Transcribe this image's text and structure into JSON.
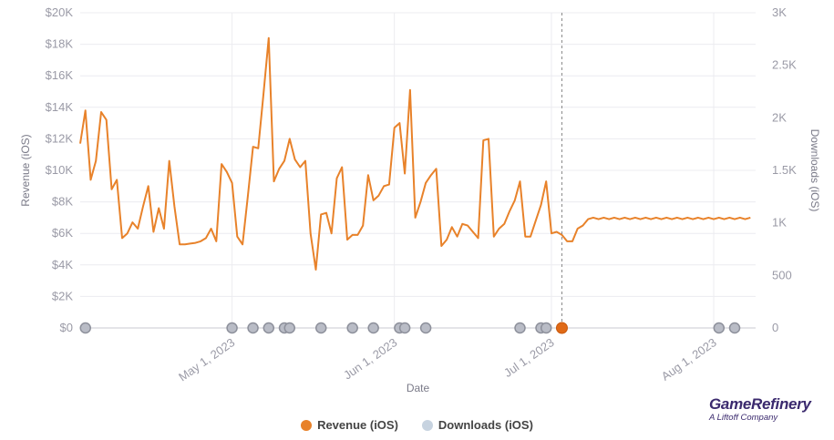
{
  "chart_data": {
    "type": "line",
    "xlabel": "Date",
    "y_left_label": "Revenue (iOS)",
    "y_right_label": "Downloads (iOS)",
    "x_range": [
      "2023-04-02",
      "2023-08-09"
    ],
    "y_left_range": [
      0,
      20000
    ],
    "y_right_range": [
      0,
      3000
    ],
    "y_left_ticks": [
      "$0",
      "$2K",
      "$4K",
      "$6K",
      "$8K",
      "$10K",
      "$12K",
      "$14K",
      "$16K",
      "$18K",
      "$20K"
    ],
    "y_right_ticks": [
      "0",
      "500",
      "1K",
      "1.5K",
      "2K",
      "2.5K",
      "3K"
    ],
    "x_ticks": [
      {
        "label": "May 1, 2023",
        "date": "2023-05-01"
      },
      {
        "label": "Jun 1, 2023",
        "date": "2023-06-01"
      },
      {
        "label": "Jul 1, 2023",
        "date": "2023-07-01"
      },
      {
        "label": "Aug 1, 2023",
        "date": "2023-08-01"
      }
    ],
    "grid": true,
    "legend_position": "bottom-center",
    "series": [
      {
        "name": "Revenue (iOS)",
        "axis": "left",
        "color": "#E8822A",
        "start_date": "2023-04-02",
        "values": [
          11700,
          13800,
          9400,
          10600,
          13700,
          13200,
          8800,
          9400,
          5700,
          6000,
          6700,
          6300,
          7700,
          9000,
          6100,
          7600,
          6300,
          10600,
          7700,
          5300,
          5300,
          5350,
          5400,
          5500,
          5700,
          6300,
          5500,
          10400,
          9900,
          9200,
          5800,
          5300,
          8300,
          11500,
          11400,
          14800,
          18400,
          9300,
          10100,
          10600,
          12000,
          10700,
          10200,
          10600,
          6000,
          3700,
          7200,
          7300,
          6000,
          9500,
          10200,
          5600,
          5900,
          5900,
          6500,
          9700,
          8100,
          8400,
          9000,
          9100,
          12700,
          13000,
          9800,
          15100,
          7000,
          8000,
          9200,
          9700,
          10100,
          5200,
          5600,
          6400,
          5800,
          6600,
          6500,
          6100,
          5700,
          11900,
          12000,
          5800,
          6300,
          6600,
          7400,
          8100,
          9300,
          5800,
          5800,
          6800,
          7800,
          9300,
          6000,
          6100,
          5900,
          5500,
          5500,
          6300,
          6500,
          6900,
          7000,
          6900,
          7000,
          6900,
          7000,
          6900,
          7000,
          6900,
          7000,
          6900,
          7000,
          6900,
          7000,
          6900,
          7000,
          6900,
          7000,
          6900,
          7000,
          6900,
          7000,
          6900,
          7000,
          6900,
          7000,
          6900,
          7000,
          6900,
          7000,
          6900,
          7000
        ],
        "values_note": ""
      }
    ],
    "marker_dates": [
      "2023-04-03",
      "2023-05-01",
      "2023-05-05",
      "2023-05-08",
      "2023-05-11",
      "2023-05-12",
      "2023-05-18",
      "2023-05-24",
      "2023-05-28",
      "2023-06-02",
      "2023-06-03",
      "2023-06-07",
      "2023-06-25",
      "2023-06-29",
      "2023-06-30",
      "2023-08-02",
      "2023-08-05"
    ],
    "highlight_date": "2023-07-03",
    "dashed_line_date": "2023-07-03"
  },
  "legend": {
    "revenue_label": "Revenue (iOS)",
    "downloads_label": "Downloads (iOS)"
  },
  "brand": {
    "name": "GameRefinery",
    "sub": "A Liftoff Company"
  }
}
